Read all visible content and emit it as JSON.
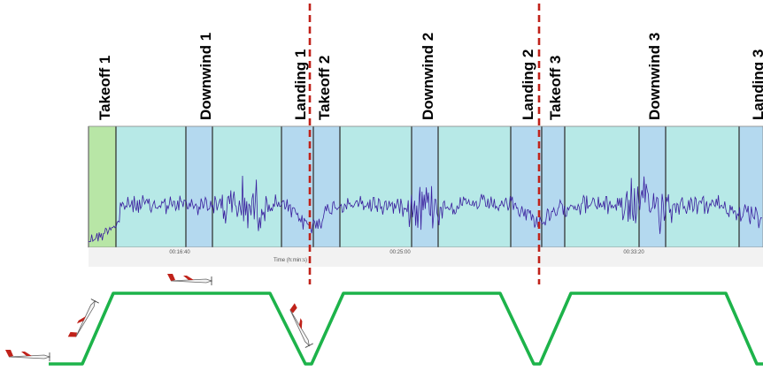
{
  "chart_data": {
    "type": "line",
    "xlabel": "Time (h:min:s)",
    "x_ticks": [
      "00:16:40",
      "00:25:00",
      "00:33:20"
    ],
    "phases": [
      {
        "label": "Takeoff 1",
        "kind": "takeoff"
      },
      {
        "label": "Downwind 1",
        "kind": "downwind"
      },
      {
        "label": "Landing 1",
        "kind": "landing"
      },
      {
        "label": "Takeoff 2",
        "kind": "takeoff"
      },
      {
        "label": "Downwind 2",
        "kind": "downwind"
      },
      {
        "label": "Landing 2",
        "kind": "landing"
      },
      {
        "label": "Takeoff 3",
        "kind": "takeoff"
      },
      {
        "label": "Downwind 3",
        "kind": "downwind"
      },
      {
        "label": "Landing 3",
        "kind": "landing"
      }
    ],
    "colors": {
      "takeoff_1_band": "#b8e6a6",
      "climb_band": "#b7e9e7",
      "turn_band": "#b4d9ef",
      "signal_line": "#3a1f9e",
      "separator": "#c0221a",
      "flight_path": "#1db34a",
      "band_border": "#2a2a2a",
      "axis_strip": "#f2f2f2"
    },
    "flight_profile": {
      "pattern": [
        "ground",
        "climb",
        "cruise",
        "descent",
        "ground",
        "climb",
        "cruise",
        "descent",
        "ground",
        "climb",
        "cruise",
        "descent",
        "ground"
      ],
      "icons": [
        "aircraft-on-ground-icon",
        "aircraft-climbing-icon",
        "aircraft-cruising-icon",
        "aircraft-descending-icon"
      ]
    }
  }
}
